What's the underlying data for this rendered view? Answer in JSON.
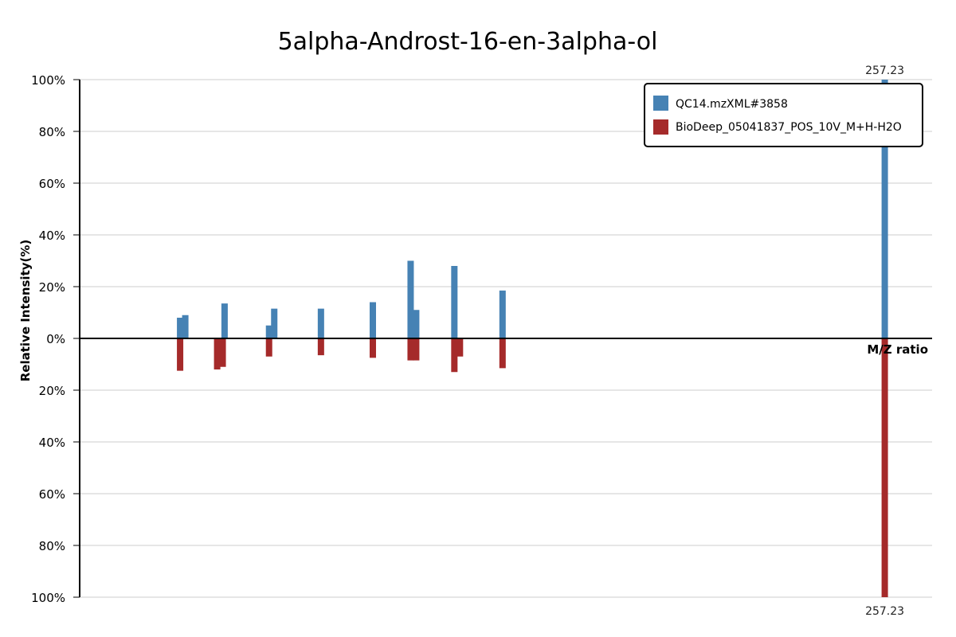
{
  "chart_data": {
    "type": "bar",
    "title": "5alpha-Androst-16-en-3alpha-ol",
    "xlabel": "M/Z ratio",
    "ylabel": "Relative Intensity(%)",
    "x_range": [
      40,
      270
    ],
    "y_range": [
      -100,
      100
    ],
    "y_ticks": [
      {
        "value": 100,
        "label": "100%"
      },
      {
        "value": 80,
        "label": "80%"
      },
      {
        "value": 60,
        "label": "60%"
      },
      {
        "value": 40,
        "label": "40%"
      },
      {
        "value": 20,
        "label": "20%"
      },
      {
        "value": 0,
        "label": "0%"
      },
      {
        "value": -20,
        "label": "20%"
      },
      {
        "value": -40,
        "label": "40%"
      },
      {
        "value": -60,
        "label": "60%"
      },
      {
        "value": -80,
        "label": "80%"
      },
      {
        "value": -100,
        "label": "100%"
      }
    ],
    "grid": true,
    "legend_position": "top-right",
    "series": [
      {
        "name": "QC14.mzXML#3858",
        "color": "#4682b4",
        "direction": "up",
        "peaks": [
          {
            "mz": 67.1,
            "intensity": 8
          },
          {
            "mz": 68.5,
            "intensity": 9
          },
          {
            "mz": 79.1,
            "intensity": 13.5
          },
          {
            "mz": 91.1,
            "intensity": 5
          },
          {
            "mz": 92.5,
            "intensity": 11.5
          },
          {
            "mz": 105.1,
            "intensity": 11.5
          },
          {
            "mz": 119.1,
            "intensity": 14
          },
          {
            "mz": 129.3,
            "intensity": 30
          },
          {
            "mz": 130.8,
            "intensity": 11
          },
          {
            "mz": 141.1,
            "intensity": 28
          },
          {
            "mz": 154.1,
            "intensity": 18.5
          },
          {
            "mz": 257.23,
            "intensity": 100,
            "label": "257.23"
          }
        ]
      },
      {
        "name": "BioDeep_05041837_POS_10V_M+H-H2O",
        "color": "#a52a2a",
        "direction": "down",
        "peaks": [
          {
            "mz": 67.1,
            "intensity": 12.5
          },
          {
            "mz": 77.1,
            "intensity": 12
          },
          {
            "mz": 78.6,
            "intensity": 11
          },
          {
            "mz": 91.1,
            "intensity": 7
          },
          {
            "mz": 105.1,
            "intensity": 6.5
          },
          {
            "mz": 119.1,
            "intensity": 7.5
          },
          {
            "mz": 129.3,
            "intensity": 8.5
          },
          {
            "mz": 130.8,
            "intensity": 8.5
          },
          {
            "mz": 141.1,
            "intensity": 13
          },
          {
            "mz": 142.6,
            "intensity": 7
          },
          {
            "mz": 154.1,
            "intensity": 11.5
          },
          {
            "mz": 257.23,
            "intensity": 100,
            "label": "257.23"
          }
        ]
      }
    ]
  }
}
